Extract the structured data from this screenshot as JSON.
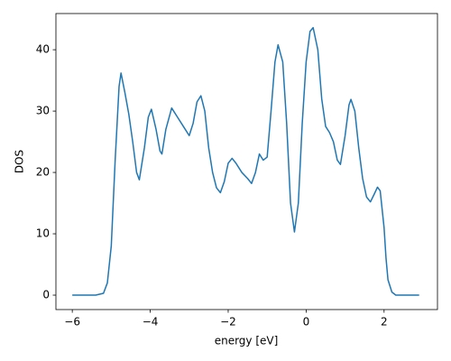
{
  "chart_data": {
    "type": "line",
    "x_label": "energy [eV]",
    "y_label": "DOS",
    "x": [
      -6,
      -5.4,
      -5.2,
      -5.1,
      -5.0,
      -4.9,
      -4.8,
      -4.75,
      -4.65,
      -4.55,
      -4.45,
      -4.35,
      -4.28,
      -4.15,
      -4.05,
      -3.97,
      -3.85,
      -3.75,
      -3.7,
      -3.6,
      -3.45,
      -3.3,
      -3.15,
      -3.0,
      -2.9,
      -2.8,
      -2.7,
      -2.6,
      -2.5,
      -2.4,
      -2.3,
      -2.2,
      -2.1,
      -2.0,
      -1.9,
      -1.8,
      -1.65,
      -1.5,
      -1.4,
      -1.3,
      -1.2,
      -1.1,
      -1.0,
      -0.9,
      -0.8,
      -0.72,
      -0.6,
      -0.5,
      -0.4,
      -0.3,
      -0.2,
      -0.1,
      0.0,
      0.1,
      0.18,
      0.3,
      0.4,
      0.5,
      0.6,
      0.7,
      0.8,
      0.88,
      1.0,
      1.1,
      1.15,
      1.25,
      1.35,
      1.45,
      1.55,
      1.65,
      1.75,
      1.83,
      1.9,
      2.0,
      2.05,
      2.1,
      2.2,
      2.3,
      2.9
    ],
    "series": [
      {
        "color": "#1f77b4",
        "values": [
          0,
          0,
          0.3,
          2,
          8,
          22,
          34,
          36.2,
          33,
          29.5,
          25,
          20,
          18.8,
          24,
          29,
          30.3,
          27,
          23.5,
          23,
          27,
          30.5,
          29,
          27.5,
          26,
          28,
          31.5,
          32.5,
          30,
          24,
          20,
          17.5,
          16.7,
          18.5,
          21.5,
          22.3,
          21.5,
          20,
          19,
          18.2,
          20,
          23,
          22,
          22.5,
          30,
          38,
          40.8,
          38,
          28,
          15,
          10.3,
          15,
          28,
          38,
          43,
          43.6,
          40,
          32,
          27.5,
          26.5,
          25,
          22,
          21.3,
          26,
          31,
          31.9,
          30,
          24,
          19,
          16,
          15.2,
          16.5,
          17.6,
          17,
          11,
          6,
          2.5,
          0.5,
          0,
          0
        ]
      }
    ],
    "xlim": [
      -6.42,
      3.37
    ],
    "ylim": [
      -2.35,
      45.9
    ],
    "xticks": [
      {
        "value": -6,
        "label": "−6"
      },
      {
        "value": -4,
        "label": "−4"
      },
      {
        "value": -2,
        "label": "−2"
      },
      0,
      2
    ],
    "yticks": [
      0,
      10,
      20,
      30,
      40
    ],
    "grid": false
  }
}
